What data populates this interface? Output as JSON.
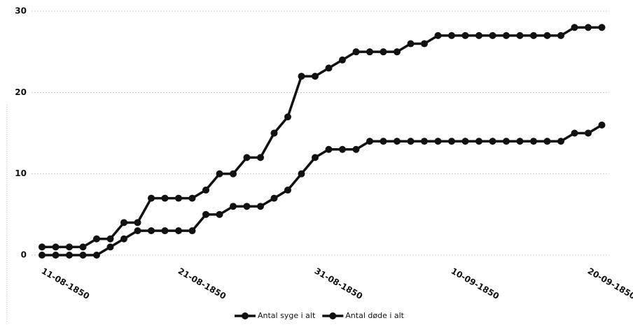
{
  "chart_data": {
    "type": "line",
    "categories": [
      "11-08-1850",
      null,
      null,
      null,
      null,
      null,
      null,
      null,
      null,
      null,
      "21-08-1850",
      null,
      null,
      null,
      null,
      null,
      null,
      null,
      null,
      null,
      "31-08-1850",
      null,
      null,
      null,
      null,
      null,
      null,
      null,
      null,
      null,
      "10-09-1850",
      null,
      null,
      null,
      null,
      null,
      null,
      null,
      null,
      null,
      "20-09-1850",
      null
    ],
    "series": [
      {
        "name": "Antal syge i alt",
        "color": "#111111",
        "values": [
          1,
          1,
          1,
          1,
          2,
          2,
          4,
          4,
          7,
          7,
          7,
          7,
          8,
          10,
          10,
          12,
          12,
          15,
          17,
          22,
          22,
          23,
          24,
          25,
          25,
          25,
          25,
          26,
          26,
          27,
          27,
          27,
          27,
          27,
          27,
          27,
          27,
          27,
          27,
          28,
          28,
          28
        ]
      },
      {
        "name": "Antal døde i alt",
        "color": "#111111",
        "values": [
          0,
          0,
          0,
          0,
          0,
          1,
          2,
          3,
          3,
          3,
          3,
          3,
          5,
          5,
          6,
          6,
          6,
          7,
          8,
          10,
          12,
          13,
          13,
          13,
          14,
          14,
          14,
          14,
          14,
          14,
          14,
          14,
          14,
          14,
          14,
          14,
          14,
          14,
          14,
          15,
          15,
          16
        ]
      }
    ],
    "ylim": [
      0,
      30
    ],
    "yticks": [
      0,
      10,
      20,
      30
    ],
    "grid": true,
    "legend": "bottom"
  }
}
